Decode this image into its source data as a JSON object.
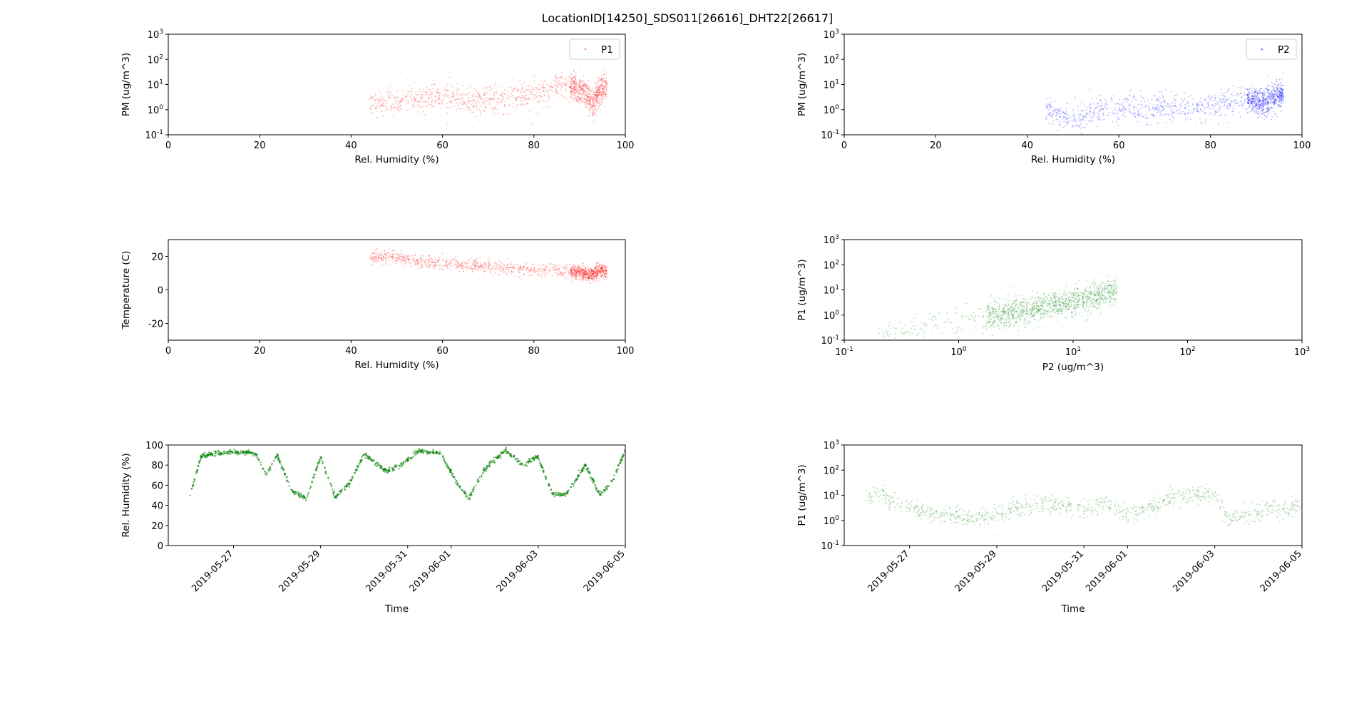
{
  "figure": {
    "title": "LocationID[14250]_SDS011[26616]_DHT22[26617]"
  },
  "chart_data": [
    {
      "id": "rh_pm_p1",
      "type": "scatter",
      "xlabel": "Rel. Humidity (%)",
      "ylabel": "PM (ug/m^3)",
      "xscale": "linear",
      "yscale": "log",
      "xlim": [
        0,
        100
      ],
      "ylim": [
        0.1,
        1000
      ],
      "xticks": [
        0,
        20,
        40,
        60,
        80,
        100
      ],
      "yticks": [
        0.1,
        1,
        10,
        100,
        1000
      ],
      "legend": {
        "placement": "top-right",
        "entries": [
          "P1"
        ]
      },
      "series": [
        {
          "name": "P1",
          "color": "#ff0000",
          "approx_points": [
            [
              44,
              2.5
            ],
            [
              46,
              1.5
            ],
            [
              48,
              2.8
            ],
            [
              50,
              1.2
            ],
            [
              52,
              3.0
            ],
            [
              55,
              2.2
            ],
            [
              58,
              3.5
            ],
            [
              60,
              2.0
            ],
            [
              63,
              2.6
            ],
            [
              66,
              1.8
            ],
            [
              70,
              3.0
            ],
            [
              73,
              2.5
            ],
            [
              76,
              3.2
            ],
            [
              80,
              3.8
            ],
            [
              83,
              6.0
            ],
            [
              85,
              9.0
            ],
            [
              87,
              12.0
            ],
            [
              89,
              7.0
            ],
            [
              91,
              5.0
            ],
            [
              92,
              3.0
            ],
            [
              93,
              2.0
            ],
            [
              94,
              4.5
            ],
            [
              95,
              6.0
            ],
            [
              96,
              8.0
            ]
          ]
        }
      ]
    },
    {
      "id": "rh_pm_p2",
      "type": "scatter",
      "xlabel": "Rel. Humidity (%)",
      "ylabel": "PM (ug/m^3)",
      "xscale": "linear",
      "yscale": "log",
      "xlim": [
        0,
        100
      ],
      "ylim": [
        0.1,
        1000
      ],
      "xticks": [
        0,
        20,
        40,
        60,
        80,
        100
      ],
      "yticks": [
        0.1,
        1,
        10,
        100,
        1000
      ],
      "legend": {
        "placement": "top-right",
        "entries": [
          "P2"
        ]
      },
      "series": [
        {
          "name": "P2",
          "color": "#0000ff",
          "approx_points": [
            [
              44,
              1.0
            ],
            [
              46,
              0.8
            ],
            [
              48,
              0.5
            ],
            [
              50,
              0.6
            ],
            [
              52,
              0.4
            ],
            [
              55,
              0.9
            ],
            [
              58,
              1.1
            ],
            [
              60,
              0.8
            ],
            [
              63,
              1.3
            ],
            [
              66,
              1.0
            ],
            [
              70,
              1.4
            ],
            [
              73,
              1.2
            ],
            [
              76,
              1.1
            ],
            [
              80,
              1.5
            ],
            [
              83,
              2.0
            ],
            [
              85,
              2.5
            ],
            [
              88,
              3.0
            ],
            [
              90,
              2.2
            ],
            [
              92,
              1.8
            ],
            [
              93,
              2.6
            ],
            [
              94,
              3.5
            ],
            [
              95,
              4.0
            ],
            [
              96,
              5.0
            ]
          ]
        }
      ]
    },
    {
      "id": "rh_temp",
      "type": "scatter",
      "xlabel": "Rel. Humidity (%)",
      "ylabel": "Temperature (C)",
      "xscale": "linear",
      "yscale": "linear",
      "xlim": [
        0,
        100
      ],
      "ylim": [
        -30,
        30
      ],
      "xticks": [
        0,
        20,
        40,
        60,
        80,
        100
      ],
      "yticks": [
        -20,
        0,
        20
      ],
      "series": [
        {
          "color": "#ff0000",
          "approx_points": [
            [
              44,
              20
            ],
            [
              46,
              19
            ],
            [
              48,
              20
            ],
            [
              50,
              19
            ],
            [
              52,
              18
            ],
            [
              55,
              17
            ],
            [
              58,
              16
            ],
            [
              60,
              15
            ],
            [
              63,
              15
            ],
            [
              66,
              14
            ],
            [
              70,
              14
            ],
            [
              73,
              13
            ],
            [
              76,
              12
            ],
            [
              80,
              12
            ],
            [
              83,
              12
            ],
            [
              86,
              11
            ],
            [
              89,
              11
            ],
            [
              91,
              10
            ],
            [
              92,
              9
            ],
            [
              93,
              10
            ],
            [
              94,
              11
            ],
            [
              95,
              12
            ],
            [
              96,
              10
            ]
          ]
        }
      ]
    },
    {
      "id": "p2_p1",
      "type": "scatter",
      "xlabel": "P2 (ug/m^3)",
      "ylabel": "P1 (ug/m^3)",
      "xscale": "log",
      "yscale": "log",
      "xlim": [
        0.1,
        1000
      ],
      "ylim": [
        0.1,
        1000
      ],
      "xticks": [
        0.1,
        1,
        10,
        100,
        1000
      ],
      "yticks": [
        0.1,
        1,
        10,
        100,
        1000
      ],
      "series": [
        {
          "color": "#008000",
          "approx_points": [
            [
              0.2,
              0.2
            ],
            [
              0.3,
              0.25
            ],
            [
              0.4,
              0.3
            ],
            [
              0.5,
              0.35
            ],
            [
              0.7,
              0.45
            ],
            [
              1.0,
              0.6
            ],
            [
              1.5,
              0.8
            ],
            [
              2.0,
              1.0
            ],
            [
              3.0,
              1.3
            ],
            [
              4.0,
              1.7
            ],
            [
              5.0,
              2.0
            ],
            [
              7.0,
              2.8
            ],
            [
              10.0,
              3.5
            ],
            [
              14.0,
              5.0
            ],
            [
              20.0,
              7.0
            ],
            [
              24.0,
              9.0
            ]
          ]
        }
      ]
    },
    {
      "id": "time_rh",
      "type": "scatter",
      "xlabel": "Time",
      "ylabel": "Rel. Humidity (%)",
      "xscale": "date",
      "yscale": "linear",
      "xlim": [
        "2019-05-25T12:00",
        "2019-06-05T00:00"
      ],
      "ylim": [
        0,
        100
      ],
      "xticks": [
        "2019-05-27",
        "2019-05-29",
        "2019-05-31",
        "2019-06-01",
        "2019-06-03",
        "2019-06-05"
      ],
      "yticks": [
        0,
        20,
        40,
        60,
        80,
        100
      ],
      "series": [
        {
          "color": "#008000",
          "approx_points": [
            [
              "2019-05-26T00:00",
              50
            ],
            [
              "2019-05-26T06:00",
              88
            ],
            [
              "2019-05-26T12:00",
              91
            ],
            [
              "2019-05-27T00:00",
              93
            ],
            [
              "2019-05-27T12:00",
              92
            ],
            [
              "2019-05-27T18:00",
              70
            ],
            [
              "2019-05-28T00:00",
              90
            ],
            [
              "2019-05-28T08:00",
              55
            ],
            [
              "2019-05-28T16:00",
              46
            ],
            [
              "2019-05-29T00:00",
              88
            ],
            [
              "2019-05-29T08:00",
              48
            ],
            [
              "2019-05-29T16:00",
              62
            ],
            [
              "2019-05-30T00:00",
              91
            ],
            [
              "2019-05-30T12:00",
              74
            ],
            [
              "2019-05-30T20:00",
              80
            ],
            [
              "2019-05-31T06:00",
              94
            ],
            [
              "2019-05-31T18:00",
              92
            ],
            [
              "2019-06-01T04:00",
              60
            ],
            [
              "2019-06-01T10:00",
              48
            ],
            [
              "2019-06-01T18:00",
              75
            ],
            [
              "2019-06-02T06:00",
              95
            ],
            [
              "2019-06-02T16:00",
              80
            ],
            [
              "2019-06-03T00:00",
              88
            ],
            [
              "2019-06-03T08:00",
              50
            ],
            [
              "2019-06-03T16:00",
              52
            ],
            [
              "2019-06-04T02:00",
              80
            ],
            [
              "2019-06-04T10:00",
              50
            ],
            [
              "2019-06-04T16:00",
              62
            ],
            [
              "2019-06-05T00:00",
              94
            ]
          ]
        }
      ]
    },
    {
      "id": "time_p1",
      "type": "scatter",
      "xlabel": "Time",
      "ylabel": "P1 (ug/m^3)",
      "xscale": "date",
      "yscale": "log",
      "xlim": [
        "2019-05-25T12:00",
        "2019-06-05T00:00"
      ],
      "ylim": [
        0.1,
        1000
      ],
      "xticks": [
        "2019-05-27",
        "2019-05-29",
        "2019-05-31",
        "2019-06-01",
        "2019-06-03",
        "2019-06-05"
      ],
      "yticks": [
        0.1,
        1,
        10,
        100,
        1000
      ],
      "series": [
        {
          "color": "#008000",
          "approx_points": [
            [
              "2019-05-26T00:00",
              8
            ],
            [
              "2019-05-26T08:00",
              10
            ],
            [
              "2019-05-26T16:00",
              6
            ],
            [
              "2019-05-27T00:00",
              3
            ],
            [
              "2019-05-27T12:00",
              2
            ],
            [
              "2019-05-28T00:00",
              1.5
            ],
            [
              "2019-05-28T12:00",
              1.2
            ],
            [
              "2019-05-29T00:00",
              2
            ],
            [
              "2019-05-29T12:00",
              3
            ],
            [
              "2019-05-30T00:00",
              5
            ],
            [
              "2019-05-30T12:00",
              4
            ],
            [
              "2019-05-31T00:00",
              3
            ],
            [
              "2019-05-31T12:00",
              5
            ],
            [
              "2019-06-01T00:00",
              1.5
            ],
            [
              "2019-06-01T12:00",
              3
            ],
            [
              "2019-06-02T00:00",
              8
            ],
            [
              "2019-06-02T12:00",
              12
            ],
            [
              "2019-06-03T00:00",
              10
            ],
            [
              "2019-06-03T08:00",
              1
            ],
            [
              "2019-06-03T20:00",
              2
            ],
            [
              "2019-06-04T08:00",
              3
            ],
            [
              "2019-06-04T16:00",
              2
            ],
            [
              "2019-06-05T00:00",
              6
            ]
          ]
        }
      ]
    }
  ]
}
